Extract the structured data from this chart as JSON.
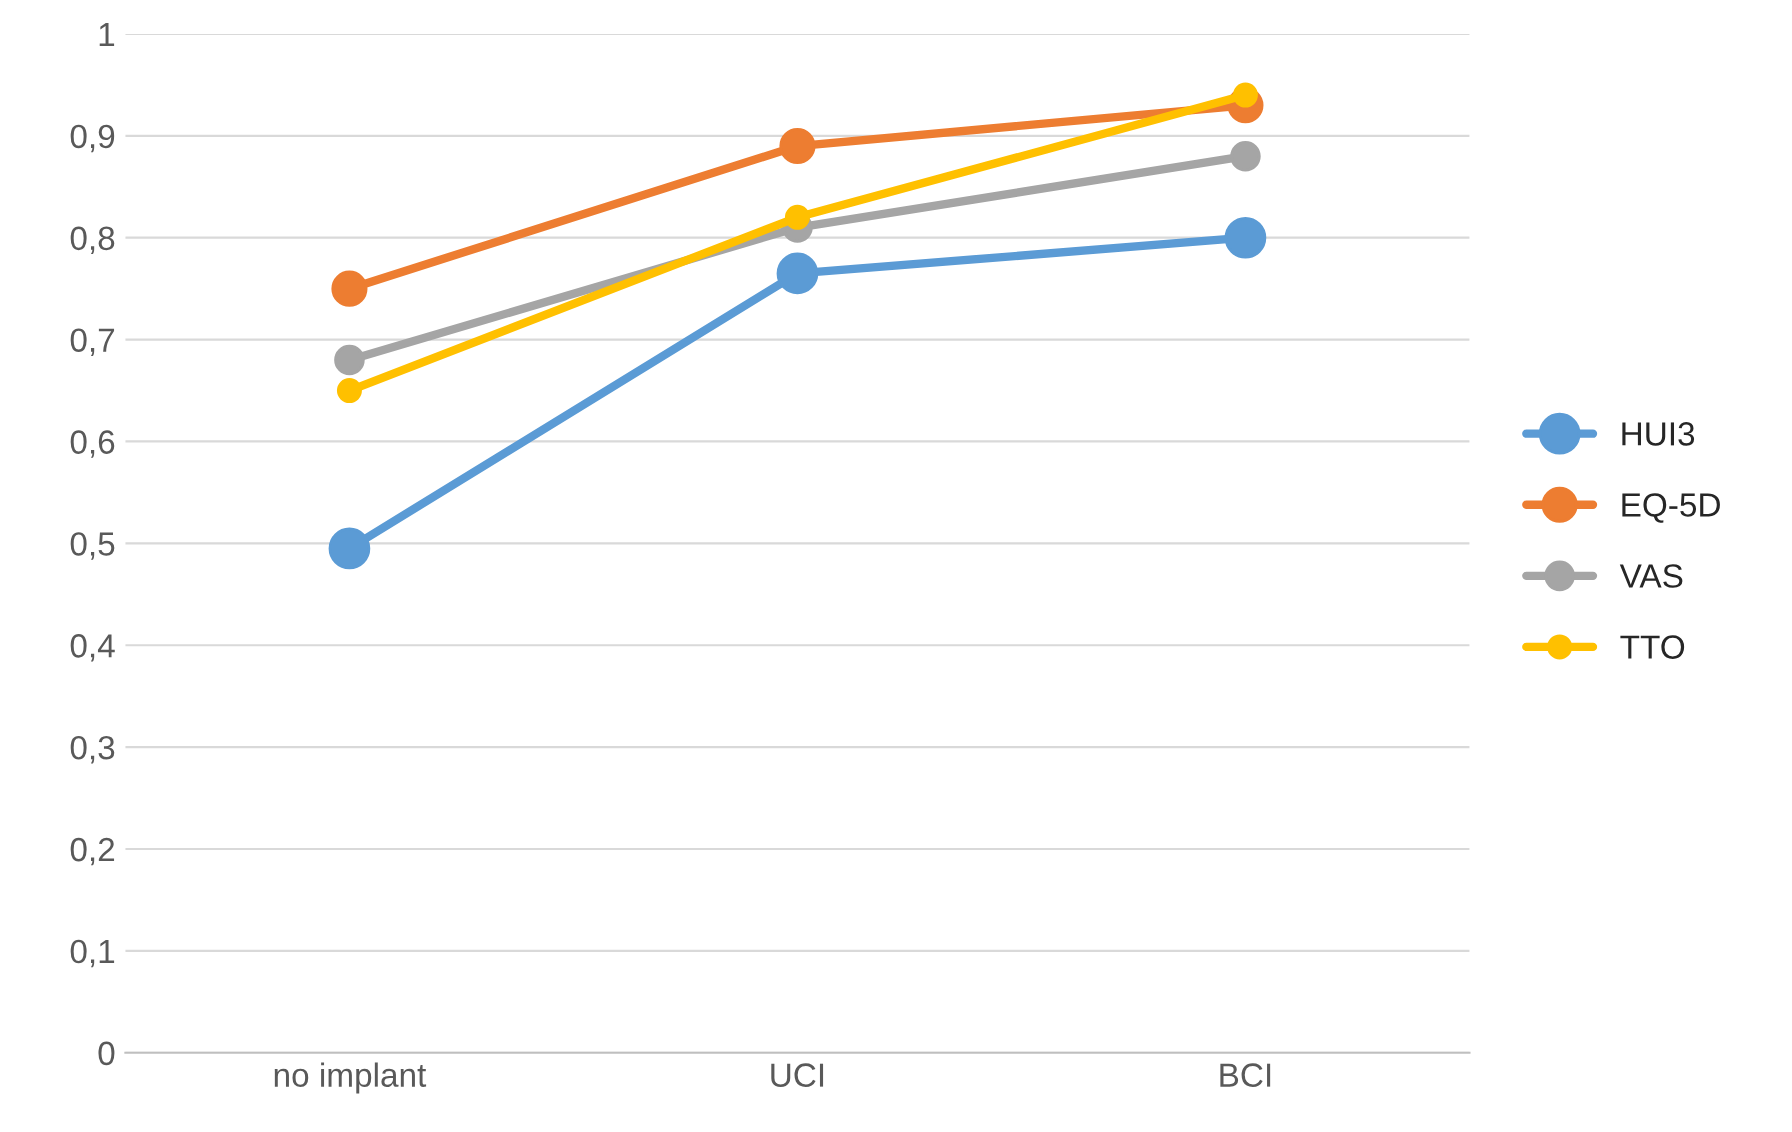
{
  "chart_data": {
    "type": "line",
    "categories": [
      "no implant",
      "UCI",
      "BCI"
    ],
    "series": [
      {
        "name": "HUI3",
        "color": "#5b9bd5",
        "values": [
          0.495,
          0.765,
          0.8
        ]
      },
      {
        "name": "EQ-5D",
        "color": "#ed7d31",
        "values": [
          0.75,
          0.89,
          0.93
        ]
      },
      {
        "name": "VAS",
        "color": "#a5a5a5",
        "values": [
          0.68,
          0.81,
          0.88
        ]
      },
      {
        "name": "TTO",
        "color": "#ffc000",
        "values": [
          0.65,
          0.82,
          0.94
        ]
      }
    ],
    "ylim": [
      0,
      1
    ],
    "yticks": [
      0,
      {
        "value": 0.1,
        "label": "0,1"
      },
      {
        "value": 0.2,
        "label": "0,2"
      },
      {
        "value": 0.3,
        "label": "0,3"
      },
      {
        "value": 0.4,
        "label": "0,4"
      },
      {
        "value": 0.5,
        "label": "0,5"
      },
      {
        "value": 0.6,
        "label": "0,6"
      },
      {
        "value": 0.7,
        "label": "0,7"
      },
      {
        "value": 0.8,
        "label": "0,8"
      },
      {
        "value": 0.9,
        "label": "0,9"
      },
      1
    ],
    "grid": "y",
    "legend": "right",
    "marker": "circle",
    "line_style": "solid"
  }
}
